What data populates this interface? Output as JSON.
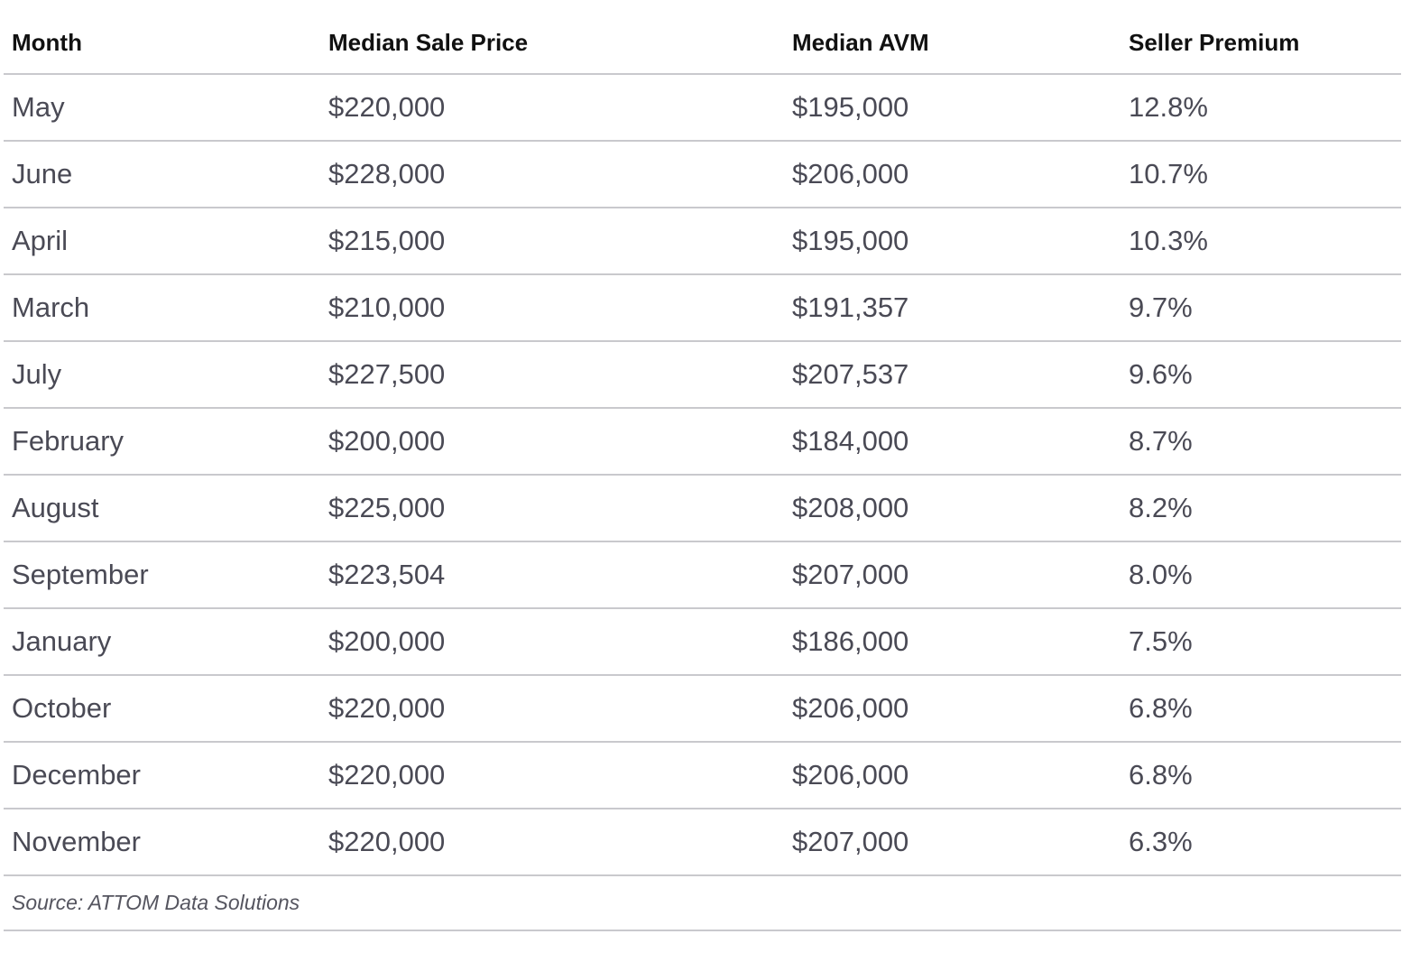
{
  "chart_data": {
    "type": "table",
    "columns": [
      "Month",
      "Median Sale Price",
      "Median AVM",
      "Seller Premium"
    ],
    "rows": [
      [
        "May",
        "$220,000",
        "$195,000",
        "12.8%"
      ],
      [
        "June",
        "$228,000",
        "$206,000",
        "10.7%"
      ],
      [
        "April",
        "$215,000",
        "$195,000",
        "10.3%"
      ],
      [
        "March",
        "$210,000",
        "$191,357",
        "9.7%"
      ],
      [
        "July",
        "$227,500",
        "$207,537",
        "9.6%"
      ],
      [
        "February",
        "$200,000",
        "$184,000",
        "8.7%"
      ],
      [
        "August",
        "$225,000",
        "$208,000",
        "8.2%"
      ],
      [
        "September",
        "$223,504",
        "$207,000",
        "8.0%"
      ],
      [
        "January",
        "$200,000",
        "$186,000",
        "7.5%"
      ],
      [
        "October",
        "$220,000",
        "$206,000",
        "6.8%"
      ],
      [
        "December",
        "$220,000",
        "$206,000",
        "6.8%"
      ],
      [
        "November",
        "$220,000",
        "$207,000",
        "6.3%"
      ]
    ],
    "source": "Source: ATTOM Data Solutions"
  }
}
